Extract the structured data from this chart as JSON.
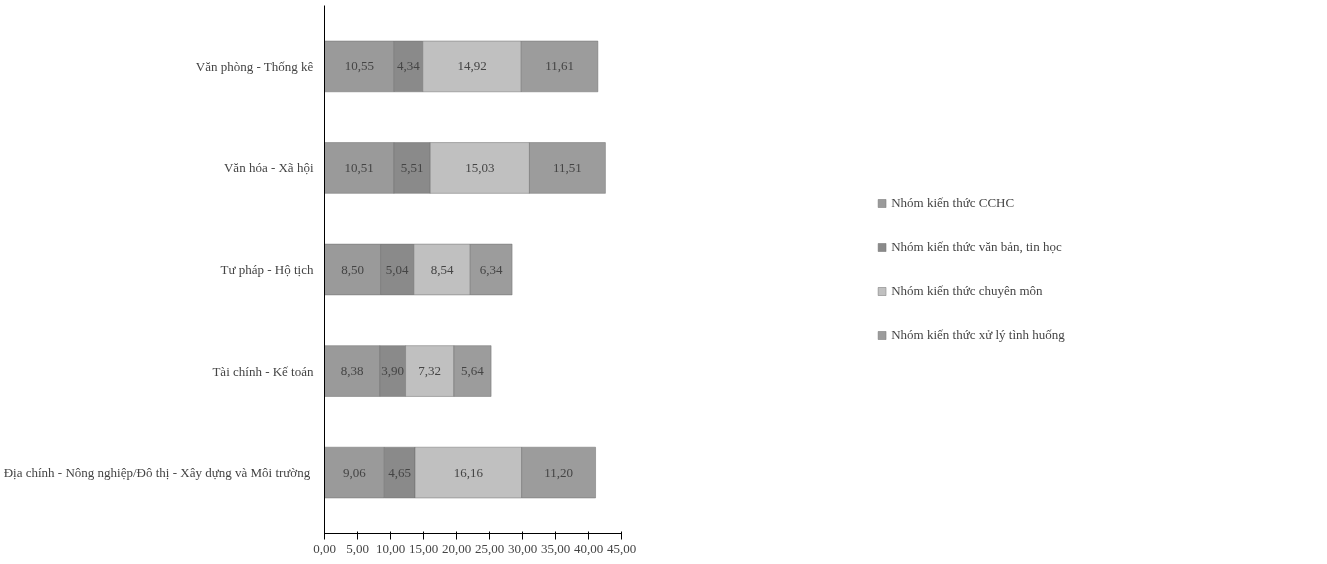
{
  "chart_data": {
    "type": "bar",
    "orientation": "horizontal",
    "stacked": true,
    "categories": [
      "Văn phòng - Thống kê",
      "Văn hóa - Xã hội",
      "Tư pháp - Hộ tịch",
      "Tài chính - Kế toán",
      "Địa chính - Nông nghiệp/Đô thị  - Xây dựng và Môi trường"
    ],
    "series": [
      {
        "name": "Nhóm kiến thức CCHC",
        "color": "#9a9a9a",
        "values": [
          10.55,
          10.51,
          8.5,
          8.38,
          9.06
        ],
        "value_labels": [
          "10,55",
          "10,51",
          "8,50",
          "8,38",
          "9,06"
        ]
      },
      {
        "name": "Nhóm kiến thức văn bản, tin học",
        "color": "#8a8a8a",
        "values": [
          4.34,
          5.51,
          5.04,
          3.9,
          4.65
        ],
        "value_labels": [
          "4,34",
          "5,51",
          "5,04",
          "3,90",
          "4,65"
        ]
      },
      {
        "name": "Nhóm kiến thức chuyên môn",
        "color": "#c0c0c0",
        "values": [
          14.92,
          15.03,
          8.54,
          7.32,
          16.16
        ],
        "value_labels": [
          "14,92",
          "15,03",
          "8,54",
          "7,32",
          "16,16"
        ]
      },
      {
        "name": "Nhóm kiến thức xử lý tình huống",
        "color": "#9c9c9c",
        "values": [
          11.61,
          11.51,
          6.34,
          5.64,
          11.2
        ],
        "value_labels": [
          "11,61",
          "11,51",
          "6,34",
          "5,64",
          "11,20"
        ]
      }
    ],
    "xlim": [
      0,
      45
    ],
    "xticks": [
      {
        "value": 0,
        "label": "0,00"
      },
      {
        "value": 5,
        "label": "5,00"
      },
      {
        "value": 10,
        "label": "10,00"
      },
      {
        "value": 15,
        "label": "15,00"
      },
      {
        "value": 20,
        "label": "20,00"
      },
      {
        "value": 25,
        "label": "25,00"
      },
      {
        "value": 30,
        "label": "30,00"
      },
      {
        "value": 35,
        "label": "35,00"
      },
      {
        "value": 40,
        "label": "40,00"
      },
      {
        "value": 45,
        "label": "45,00"
      }
    ],
    "grid": false,
    "legend": "right"
  }
}
